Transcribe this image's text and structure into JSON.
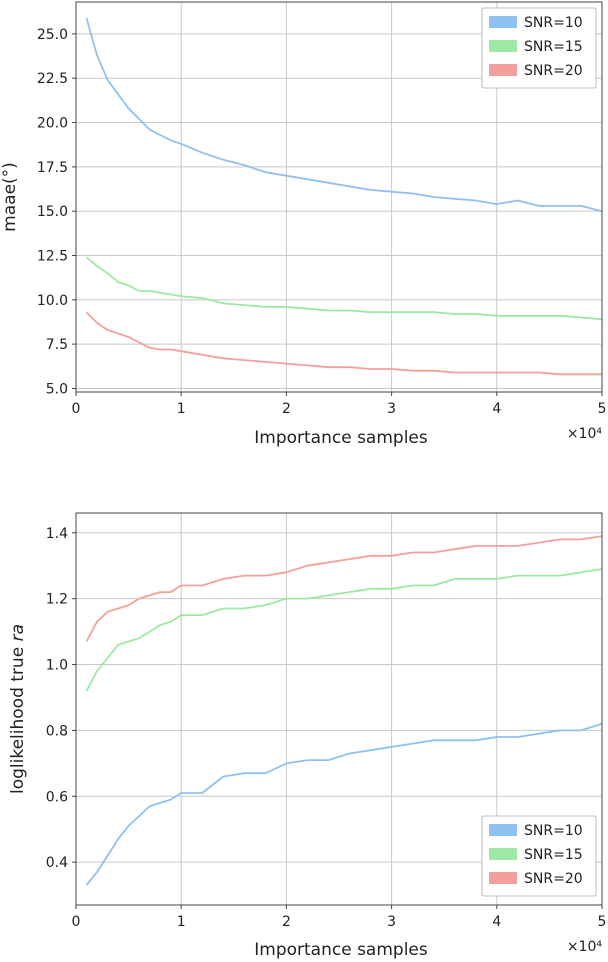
{
  "chart_data": [
    {
      "type": "line",
      "xlabel": "Importance samples",
      "ylabel": "maae(°)",
      "x_multiplier": "×10⁴",
      "xlim": [
        0,
        50000
      ],
      "ylim": [
        4.8,
        26.8
      ],
      "xticks": [
        0,
        10000,
        20000,
        30000,
        40000,
        50000
      ],
      "xtick_labels": [
        "0",
        "1",
        "2",
        "3",
        "4",
        "5"
      ],
      "yticks": [
        5.0,
        7.5,
        10.0,
        12.5,
        15.0,
        17.5,
        20.0,
        22.5,
        25.0
      ],
      "ytick_labels": [
        "5.0",
        "7.5",
        "10.0",
        "12.5",
        "15.0",
        "17.5",
        "20.0",
        "22.5",
        "25.0"
      ],
      "grid": true,
      "legend_position": "top-right",
      "x": [
        1000,
        2000,
        3000,
        4000,
        5000,
        6000,
        7000,
        8000,
        9000,
        10000,
        12000,
        14000,
        16000,
        18000,
        20000,
        22000,
        24000,
        26000,
        28000,
        30000,
        32000,
        34000,
        36000,
        38000,
        40000,
        42000,
        44000,
        46000,
        48000,
        50000
      ],
      "series": [
        {
          "name": "SNR=10",
          "color": "#8fc1f0",
          "values": [
            25.9,
            23.8,
            22.4,
            21.6,
            20.8,
            20.2,
            19.6,
            19.3,
            19.0,
            18.8,
            18.3,
            17.9,
            17.6,
            17.2,
            17.0,
            16.8,
            16.6,
            16.4,
            16.2,
            16.1,
            16.0,
            15.8,
            15.7,
            15.6,
            15.4,
            15.6,
            15.3,
            15.3,
            15.3,
            15.0
          ]
        },
        {
          "name": "SNR=15",
          "color": "#9de8a3",
          "values": [
            12.4,
            11.9,
            11.5,
            11.0,
            10.8,
            10.5,
            10.5,
            10.4,
            10.3,
            10.2,
            10.1,
            9.8,
            9.7,
            9.6,
            9.6,
            9.5,
            9.4,
            9.4,
            9.3,
            9.3,
            9.3,
            9.3,
            9.2,
            9.2,
            9.1,
            9.1,
            9.1,
            9.1,
            9.0,
            8.9
          ]
        },
        {
          "name": "SNR=20",
          "color": "#f4a09a",
          "values": [
            9.3,
            8.7,
            8.3,
            8.1,
            7.9,
            7.6,
            7.3,
            7.2,
            7.2,
            7.1,
            6.9,
            6.7,
            6.6,
            6.5,
            6.4,
            6.3,
            6.2,
            6.2,
            6.1,
            6.1,
            6.0,
            6.0,
            5.9,
            5.9,
            5.9,
            5.9,
            5.9,
            5.8,
            5.8,
            5.8
          ]
        }
      ]
    },
    {
      "type": "line",
      "xlabel": "Importance samples",
      "ylabel_prefix": "loglikelihood true ",
      "ylabel_italic": "ra",
      "x_multiplier": "×10⁴",
      "xlim": [
        0,
        50000
      ],
      "ylim": [
        0.27,
        1.46
      ],
      "xticks": [
        0,
        10000,
        20000,
        30000,
        40000,
        50000
      ],
      "xtick_labels": [
        "0",
        "1",
        "2",
        "3",
        "4",
        "5"
      ],
      "yticks": [
        0.4,
        0.6,
        0.8,
        1.0,
        1.2,
        1.4
      ],
      "ytick_labels": [
        "0.4",
        "0.6",
        "0.8",
        "1.0",
        "1.2",
        "1.4"
      ],
      "grid": true,
      "legend_position": "bottom-right",
      "x": [
        1000,
        2000,
        3000,
        4000,
        5000,
        6000,
        7000,
        8000,
        9000,
        10000,
        12000,
        14000,
        16000,
        18000,
        20000,
        22000,
        24000,
        26000,
        28000,
        30000,
        32000,
        34000,
        36000,
        38000,
        40000,
        42000,
        44000,
        46000,
        48000,
        50000
      ],
      "series": [
        {
          "name": "SNR=10",
          "color": "#8fc1f0",
          "values": [
            0.33,
            0.37,
            0.42,
            0.47,
            0.51,
            0.54,
            0.57,
            0.58,
            0.59,
            0.61,
            0.61,
            0.66,
            0.67,
            0.67,
            0.7,
            0.71,
            0.71,
            0.73,
            0.74,
            0.75,
            0.76,
            0.77,
            0.77,
            0.77,
            0.78,
            0.78,
            0.79,
            0.8,
            0.8,
            0.82
          ]
        },
        {
          "name": "SNR=15",
          "color": "#9de8a3",
          "values": [
            0.92,
            0.98,
            1.02,
            1.06,
            1.07,
            1.08,
            1.1,
            1.12,
            1.13,
            1.15,
            1.15,
            1.17,
            1.17,
            1.18,
            1.2,
            1.2,
            1.21,
            1.22,
            1.23,
            1.23,
            1.24,
            1.24,
            1.26,
            1.26,
            1.26,
            1.27,
            1.27,
            1.27,
            1.28,
            1.29
          ]
        },
        {
          "name": "SNR=20",
          "color": "#f4a09a",
          "values": [
            1.07,
            1.13,
            1.16,
            1.17,
            1.18,
            1.2,
            1.21,
            1.22,
            1.22,
            1.24,
            1.24,
            1.26,
            1.27,
            1.27,
            1.28,
            1.3,
            1.31,
            1.32,
            1.33,
            1.33,
            1.34,
            1.34,
            1.35,
            1.36,
            1.36,
            1.36,
            1.37,
            1.38,
            1.38,
            1.39
          ]
        }
      ]
    }
  ]
}
